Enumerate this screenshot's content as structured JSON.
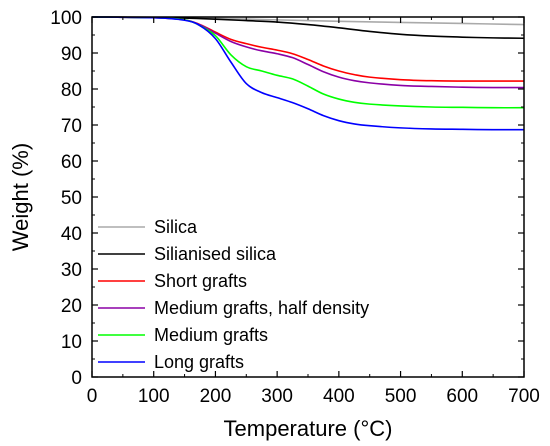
{
  "chart_data": {
    "type": "line",
    "xlabel": "Temperature (°C)",
    "ylabel": "Weight (%)",
    "xlim": [
      0,
      700
    ],
    "ylim": [
      0,
      100
    ],
    "xticks": [
      0,
      100,
      200,
      300,
      400,
      500,
      600,
      700
    ],
    "yticks": [
      0,
      10,
      20,
      30,
      40,
      50,
      60,
      70,
      80,
      90,
      100
    ],
    "grid": false,
    "legend_position": "lower-left",
    "series": [
      {
        "name": "Silica",
        "color": "#aaaaaa",
        "x": [
          0,
          100,
          200,
          300,
          400,
          500,
          600,
          700
        ],
        "y": [
          100,
          99.9,
          99.6,
          99.2,
          98.8,
          98.5,
          98.2,
          97.9
        ]
      },
      {
        "name": "Silianised silica",
        "color": "#000000",
        "x": [
          0,
          100,
          150,
          200,
          250,
          300,
          350,
          400,
          450,
          500,
          550,
          600,
          650,
          700
        ],
        "y": [
          100,
          99.9,
          99.7,
          99.4,
          99.0,
          98.6,
          97.9,
          97.0,
          96.0,
          95.2,
          94.7,
          94.4,
          94.2,
          94.1
        ]
      },
      {
        "name": "Short grafts",
        "color": "#ff0000",
        "x": [
          0,
          100,
          150,
          175,
          200,
          225,
          250,
          275,
          300,
          325,
          350,
          375,
          400,
          425,
          450,
          500,
          550,
          600,
          650,
          700
        ],
        "y": [
          100,
          99.8,
          99.2,
          97.9,
          95.8,
          93.8,
          92.6,
          91.6,
          90.8,
          89.8,
          88.2,
          86.4,
          85.0,
          84.0,
          83.3,
          82.6,
          82.3,
          82.2,
          82.2,
          82.2
        ]
      },
      {
        "name": "Medium grafts, half density",
        "color": "#8b00a6",
        "x": [
          0,
          100,
          150,
          175,
          200,
          225,
          250,
          275,
          300,
          325,
          350,
          375,
          400,
          425,
          450,
          500,
          550,
          600,
          650,
          700
        ],
        "y": [
          100,
          99.8,
          99.2,
          97.8,
          95.5,
          93.2,
          91.7,
          90.6,
          89.8,
          88.7,
          86.8,
          84.8,
          83.3,
          82.3,
          81.7,
          81.0,
          80.7,
          80.5,
          80.4,
          80.4
        ]
      },
      {
        "name": "Medium grafts",
        "color": "#00ff00",
        "x": [
          0,
          100,
          150,
          175,
          200,
          225,
          250,
          275,
          300,
          325,
          350,
          375,
          400,
          425,
          450,
          500,
          550,
          600,
          650,
          700
        ],
        "y": [
          100,
          99.8,
          99.2,
          97.6,
          94.8,
          89.5,
          86.2,
          85.0,
          83.8,
          82.8,
          80.8,
          78.6,
          77.2,
          76.3,
          75.8,
          75.3,
          75.0,
          74.9,
          74.8,
          74.8
        ]
      },
      {
        "name": "Long grafts",
        "color": "#0000ff",
        "x": [
          0,
          100,
          150,
          175,
          200,
          225,
          250,
          275,
          300,
          325,
          350,
          375,
          400,
          425,
          450,
          500,
          550,
          600,
          650,
          700
        ],
        "y": [
          100,
          99.8,
          99.1,
          97.6,
          94.0,
          87.5,
          81.5,
          79.0,
          77.6,
          76.2,
          74.5,
          72.6,
          71.2,
          70.3,
          69.8,
          69.2,
          68.9,
          68.8,
          68.7,
          68.7
        ]
      }
    ]
  }
}
